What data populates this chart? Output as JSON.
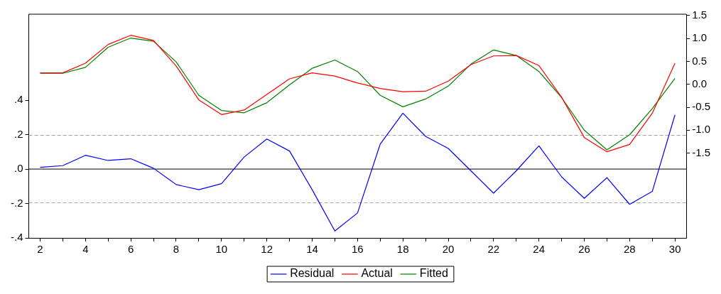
{
  "chart_data": {
    "type": "line",
    "x": [
      2,
      3,
      4,
      5,
      6,
      7,
      8,
      9,
      10,
      11,
      12,
      13,
      14,
      15,
      16,
      17,
      18,
      19,
      20,
      21,
      22,
      23,
      24,
      25,
      26,
      27,
      28,
      29,
      30
    ],
    "series": [
      {
        "name": "Residual",
        "color": "#0000ff",
        "values": [
          0.01,
          0.02,
          0.08,
          0.05,
          0.06,
          0.005,
          -0.09,
          -0.12,
          -0.085,
          0.07,
          0.175,
          0.105,
          -0.12,
          -0.36,
          -0.255,
          0.145,
          0.325,
          0.19,
          0.12,
          -0.01,
          -0.14,
          -0.01,
          0.135,
          -0.045,
          -0.17,
          -0.05,
          -0.205,
          -0.13,
          0.315
        ]
      },
      {
        "name": "Actual",
        "color": "#ff0000",
        "axis": "y2",
        "values": [
          0.25,
          0.25,
          0.46,
          0.87,
          1.07,
          0.96,
          0.4,
          -0.34,
          -0.66,
          -0.56,
          -0.22,
          0.12,
          0.25,
          0.18,
          0.03,
          -0.09,
          -0.16,
          -0.15,
          0.07,
          0.43,
          0.62,
          0.63,
          0.41,
          -0.28,
          -1.16,
          -1.47,
          -1.31,
          -0.63,
          0.46
        ]
      },
      {
        "name": "Fitted",
        "color": "#008000",
        "axis": "y2",
        "values": [
          0.24,
          0.24,
          0.37,
          0.81,
          1.01,
          0.94,
          0.49,
          -0.24,
          -0.57,
          -0.62,
          -0.4,
          -0.01,
          0.35,
          0.53,
          0.28,
          -0.24,
          -0.49,
          -0.32,
          -0.04,
          0.44,
          0.75,
          0.63,
          0.28,
          -0.29,
          -1.0,
          -1.43,
          -1.1,
          -0.53,
          0.13
        ]
      }
    ],
    "xlim": [
      1.5,
      30.5
    ],
    "xticks": [
      2,
      {
        "value": 3,
        "label": null
      },
      4,
      {
        "value": 5,
        "label": null
      },
      6,
      {
        "value": 7,
        "label": null
      },
      8,
      {
        "value": 9,
        "label": null
      },
      10,
      {
        "value": 11,
        "label": null
      },
      12,
      {
        "value": 13,
        "label": null
      },
      14,
      {
        "value": 15,
        "label": null
      },
      16,
      {
        "value": 17,
        "label": null
      },
      18,
      {
        "value": 19,
        "label": null
      },
      20,
      {
        "value": 21,
        "label": null
      },
      22,
      {
        "value": 23,
        "label": null
      },
      24,
      {
        "value": 25,
        "label": null
      },
      26,
      {
        "value": 27,
        "label": null
      },
      28,
      {
        "value": 29,
        "label": null
      },
      30
    ],
    "ylim": [
      -0.4,
      0.9
    ],
    "yticks": [
      {
        "value": -0.4,
        "label": "-.4"
      },
      {
        "value": -0.2,
        "label": "-.2"
      },
      {
        "value": 0,
        "label": ".0"
      },
      {
        "value": 0.2,
        "label": ".2"
      },
      {
        "value": 0.4,
        "label": ".4"
      }
    ],
    "y2lim": [
      -3.35,
      1.53
    ],
    "y2ticks": [
      {
        "value": -1.5,
        "label": "-1.5"
      },
      {
        "value": -1,
        "label": "-1.0"
      },
      {
        "value": -0.5,
        "label": "-0.5"
      },
      {
        "value": 0,
        "label": "0.0"
      },
      {
        "value": 0.5,
        "label": "0.5"
      },
      {
        "value": 1,
        "label": "1.0"
      },
      {
        "value": 1.5,
        "label": "1.5"
      }
    ],
    "ref_lines": [
      {
        "axis": "y",
        "value": 0.196,
        "color": "#a0a0a0",
        "line_style": "dashed"
      },
      {
        "axis": "y",
        "value": 0,
        "color": "#000000",
        "line_style": "solid"
      },
      {
        "axis": "y",
        "value": -0.196,
        "color": "#a0a0a0",
        "line_style": "dashed"
      }
    ],
    "grid": false,
    "legend": "bottom",
    "marker": "none",
    "line_style": "solid"
  }
}
